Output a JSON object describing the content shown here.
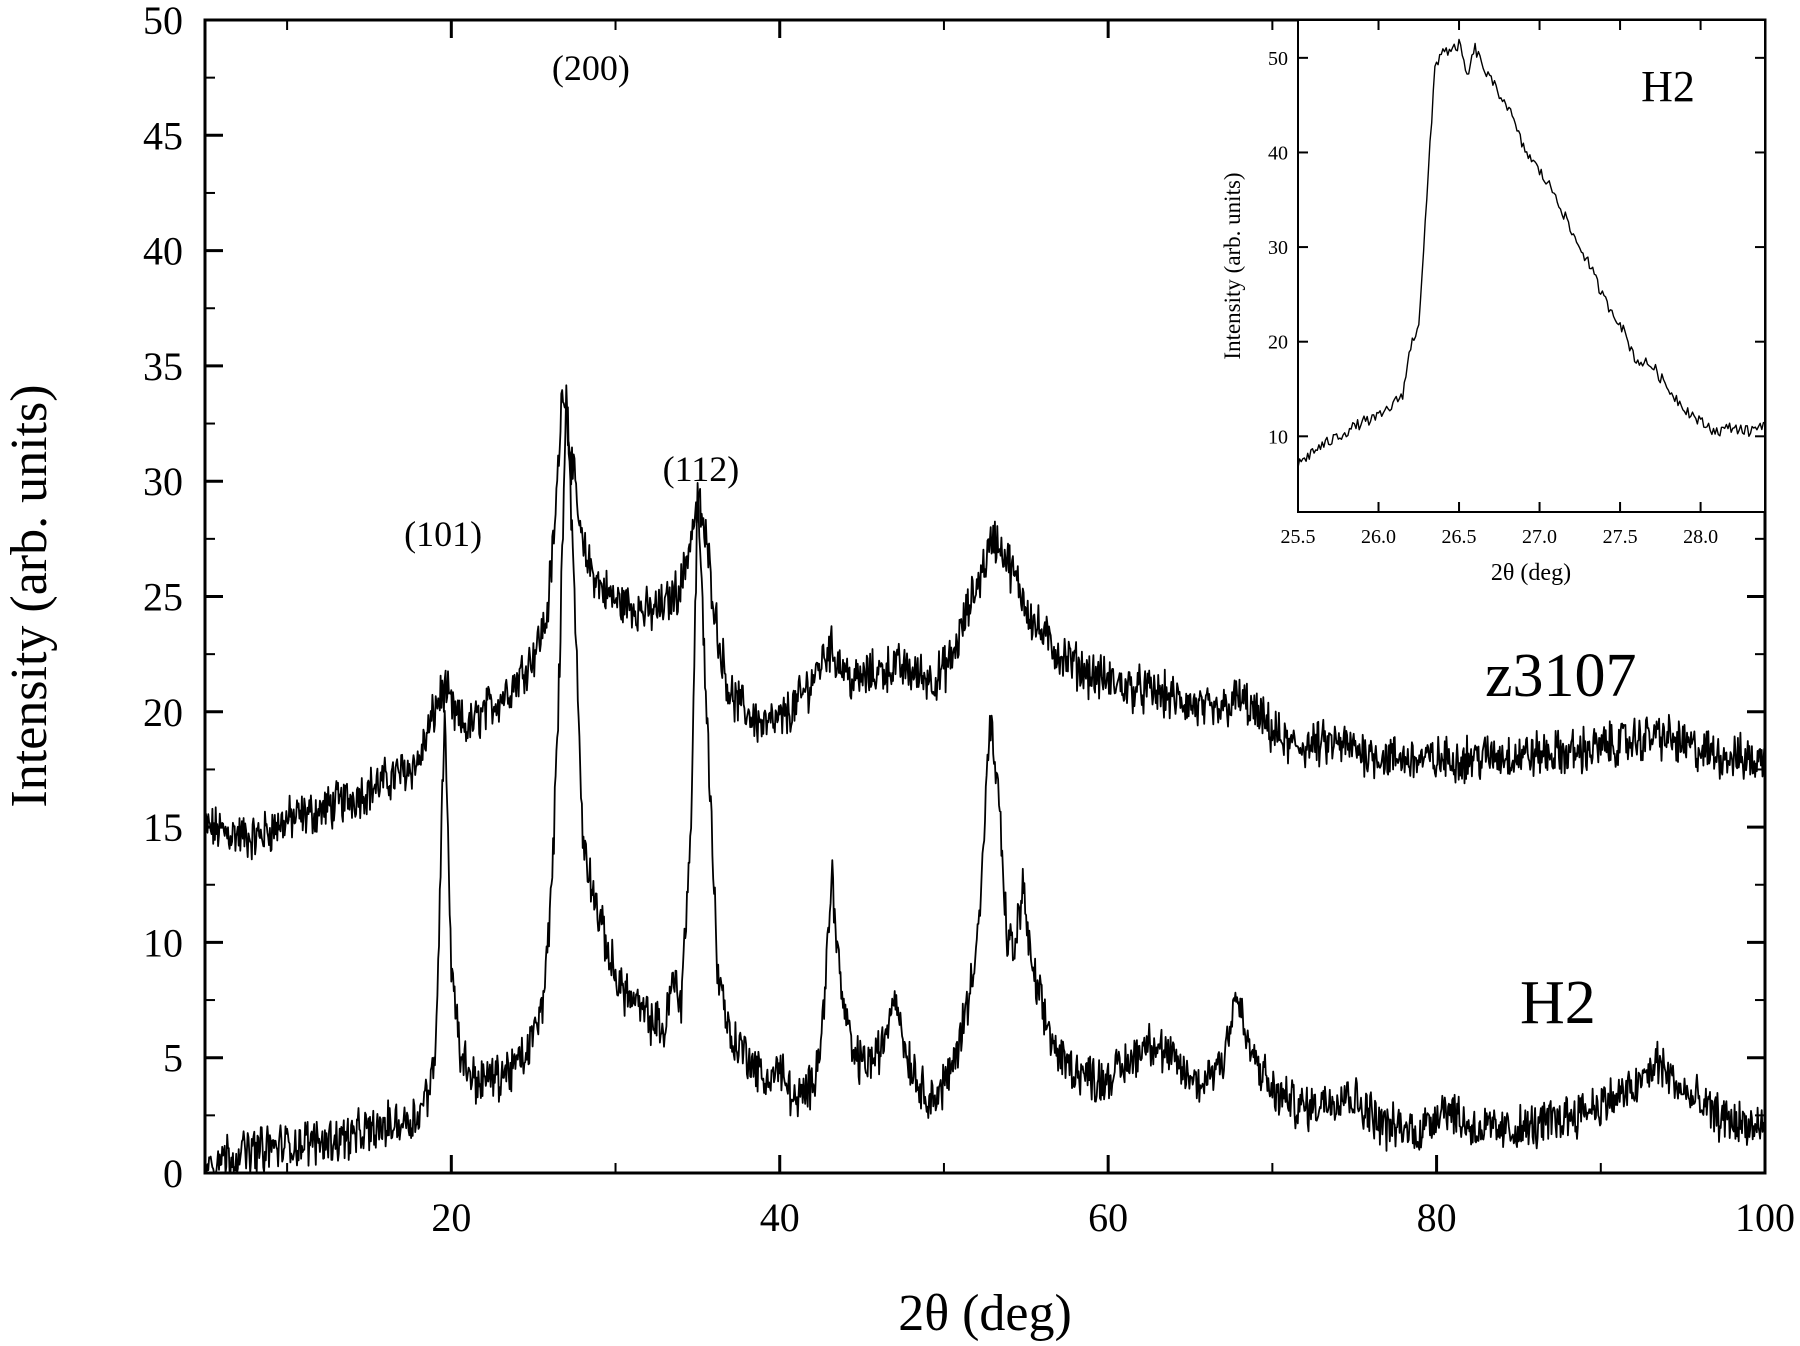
{
  "chart_data": [
    {
      "type": "line",
      "xlabel": "2θ (deg)",
      "ylabel": "Intensity (arb. units)",
      "xlim": [
        5,
        100
      ],
      "ylim": [
        0,
        50
      ],
      "xticks": [
        20,
        40,
        60,
        80,
        100
      ],
      "yticks": [
        0,
        5,
        10,
        15,
        20,
        25,
        30,
        35,
        40,
        45,
        50
      ],
      "grid": false,
      "series": [
        {
          "name": "z3107",
          "x": [
            5,
            8,
            10,
            12,
            14,
            16,
            18,
            19.2,
            19.6,
            20.2,
            21,
            22,
            23,
            24,
            25,
            25.8,
            26.3,
            26.8,
            27.3,
            28,
            29,
            30,
            31,
            32,
            33,
            34,
            34.7,
            35.1,
            35.6,
            36.3,
            37,
            38,
            39,
            40,
            41,
            42,
            43,
            43.5,
            44.5,
            45.5,
            47,
            48.5,
            49.5,
            50.5,
            51.5,
            52.5,
            53,
            53.6,
            54.5,
            55.5,
            57,
            59,
            61,
            63,
            65,
            66.5,
            68,
            69.5,
            71,
            74,
            77,
            80,
            84,
            88,
            91,
            93.5,
            96,
            100
          ],
          "values": [
            15.0,
            14.5,
            15.3,
            15.7,
            16.3,
            17.0,
            17.8,
            20.5,
            21.0,
            19.8,
            19.3,
            20.0,
            20.6,
            21.4,
            22.5,
            24.0,
            28.0,
            34.5,
            31.0,
            27.0,
            25.5,
            24.8,
            24.6,
            24.3,
            24.6,
            25.5,
            28.0,
            29.0,
            27.0,
            23.0,
            20.7,
            20.0,
            19.4,
            19.6,
            20.3,
            21.4,
            22.8,
            22.3,
            21.3,
            21.6,
            22.0,
            21.6,
            21.4,
            22.3,
            24.5,
            26.5,
            27.6,
            27.0,
            25.5,
            23.8,
            22.5,
            21.6,
            21.1,
            20.8,
            20.3,
            19.9,
            20.6,
            19.5,
            18.5,
            18.6,
            18.0,
            17.9,
            18.1,
            18.2,
            18.6,
            19.0,
            18.3,
            17.8
          ]
        },
        {
          "name": "H2",
          "x": [
            5,
            8,
            11,
            14,
            16,
            18,
            19,
            19.3,
            19.6,
            20.0,
            20.6,
            21.5,
            23,
            24.5,
            25.5,
            26.1,
            26.6,
            27.0,
            27.4,
            28,
            29,
            30,
            31,
            32,
            33,
            33.5,
            34,
            34.6,
            35.0,
            35.5,
            36.2,
            37,
            38,
            39,
            40,
            41,
            42,
            42.6,
            43.2,
            43.7,
            44.5,
            45.5,
            46.3,
            47,
            47.6,
            48.5,
            49.5,
            50.5,
            51.5,
            52.2,
            52.8,
            53.3,
            53.8,
            54.3,
            54.8,
            55.3,
            56,
            57,
            58,
            59.5,
            61,
            62.5,
            64,
            65.5,
            67,
            67.8,
            68.5,
            70,
            72,
            74.5,
            77,
            79,
            80.5,
            82,
            84,
            86,
            88,
            90,
            92,
            93.5,
            95,
            97,
            100
          ],
          "values": [
            0.5,
            1.0,
            1.3,
            1.6,
            2.0,
            2.5,
            4.5,
            12.0,
            20.5,
            9.0,
            5.0,
            4.0,
            4.2,
            5.0,
            7.0,
            12.0,
            22.0,
            34.5,
            27.0,
            14.5,
            11.0,
            8.5,
            7.5,
            6.7,
            6.2,
            8.5,
            7.5,
            15.0,
            29.5,
            21.0,
            9.0,
            5.8,
            5.2,
            4.0,
            4.5,
            3.0,
            3.8,
            6.5,
            13.0,
            8.0,
            5.0,
            4.8,
            5.5,
            8.0,
            5.5,
            3.8,
            3.2,
            4.5,
            7.5,
            11.5,
            19.5,
            16.5,
            10.5,
            9.5,
            12.5,
            9.0,
            7.0,
            5.0,
            4.5,
            4.0,
            4.6,
            5.8,
            4.8,
            3.8,
            5.0,
            7.8,
            5.5,
            3.5,
            2.8,
            3.5,
            2.0,
            1.8,
            3.0,
            2.0,
            1.8,
            2.0,
            2.5,
            3.0,
            3.6,
            4.8,
            3.5,
            2.5,
            1.8
          ]
        }
      ],
      "annotations": [
        {
          "text": "(101)",
          "x": 19.5,
          "y": 27.2
        },
        {
          "text": "(200)",
          "x": 28.5,
          "y": 47.4
        },
        {
          "text": "(112)",
          "x": 35.2,
          "y": 30.0
        }
      ]
    },
    {
      "type": "line",
      "title": "H2",
      "xlabel": "2θ (deg)",
      "ylabel": "Intensity (arb. units)",
      "xlim": [
        25.5,
        28.4
      ],
      "ylim": [
        2,
        54
      ],
      "xticks": [
        "25.5",
        "26.0",
        "26.5",
        "27.0",
        "27.5",
        "28.0"
      ],
      "yticks": [
        "10",
        "20",
        "30",
        "40",
        "50"
      ],
      "grid": false,
      "series": [
        {
          "x": [
            25.5,
            25.6,
            25.7,
            25.8,
            25.9,
            26.0,
            26.1,
            26.15,
            26.2,
            26.25,
            26.3,
            26.35,
            26.4,
            26.45,
            26.5,
            26.55,
            26.6,
            26.65,
            26.7,
            26.8,
            26.9,
            27.0,
            27.1,
            27.2,
            27.3,
            27.4,
            27.5,
            27.6,
            27.7,
            27.8,
            27.9,
            28.0,
            28.1,
            28.2,
            28.3,
            28.4
          ],
          "values": [
            7.0,
            8.5,
            9.5,
            10.5,
            11.5,
            12.0,
            13.5,
            14.5,
            19.5,
            22.0,
            35.0,
            49.0,
            51.0,
            50.5,
            51.5,
            48.0,
            51.0,
            49.0,
            47.5,
            45.0,
            40.5,
            38.0,
            35.5,
            31.5,
            28.5,
            24.5,
            22.0,
            18.0,
            17.5,
            15.0,
            13.0,
            11.5,
            10.5,
            11.0,
            10.5,
            11.5
          ]
        }
      ]
    }
  ],
  "labels": {
    "series_a": "z3107",
    "series_b": "H2"
  },
  "colors": {
    "line": "#000000",
    "background": "#ffffff"
  }
}
